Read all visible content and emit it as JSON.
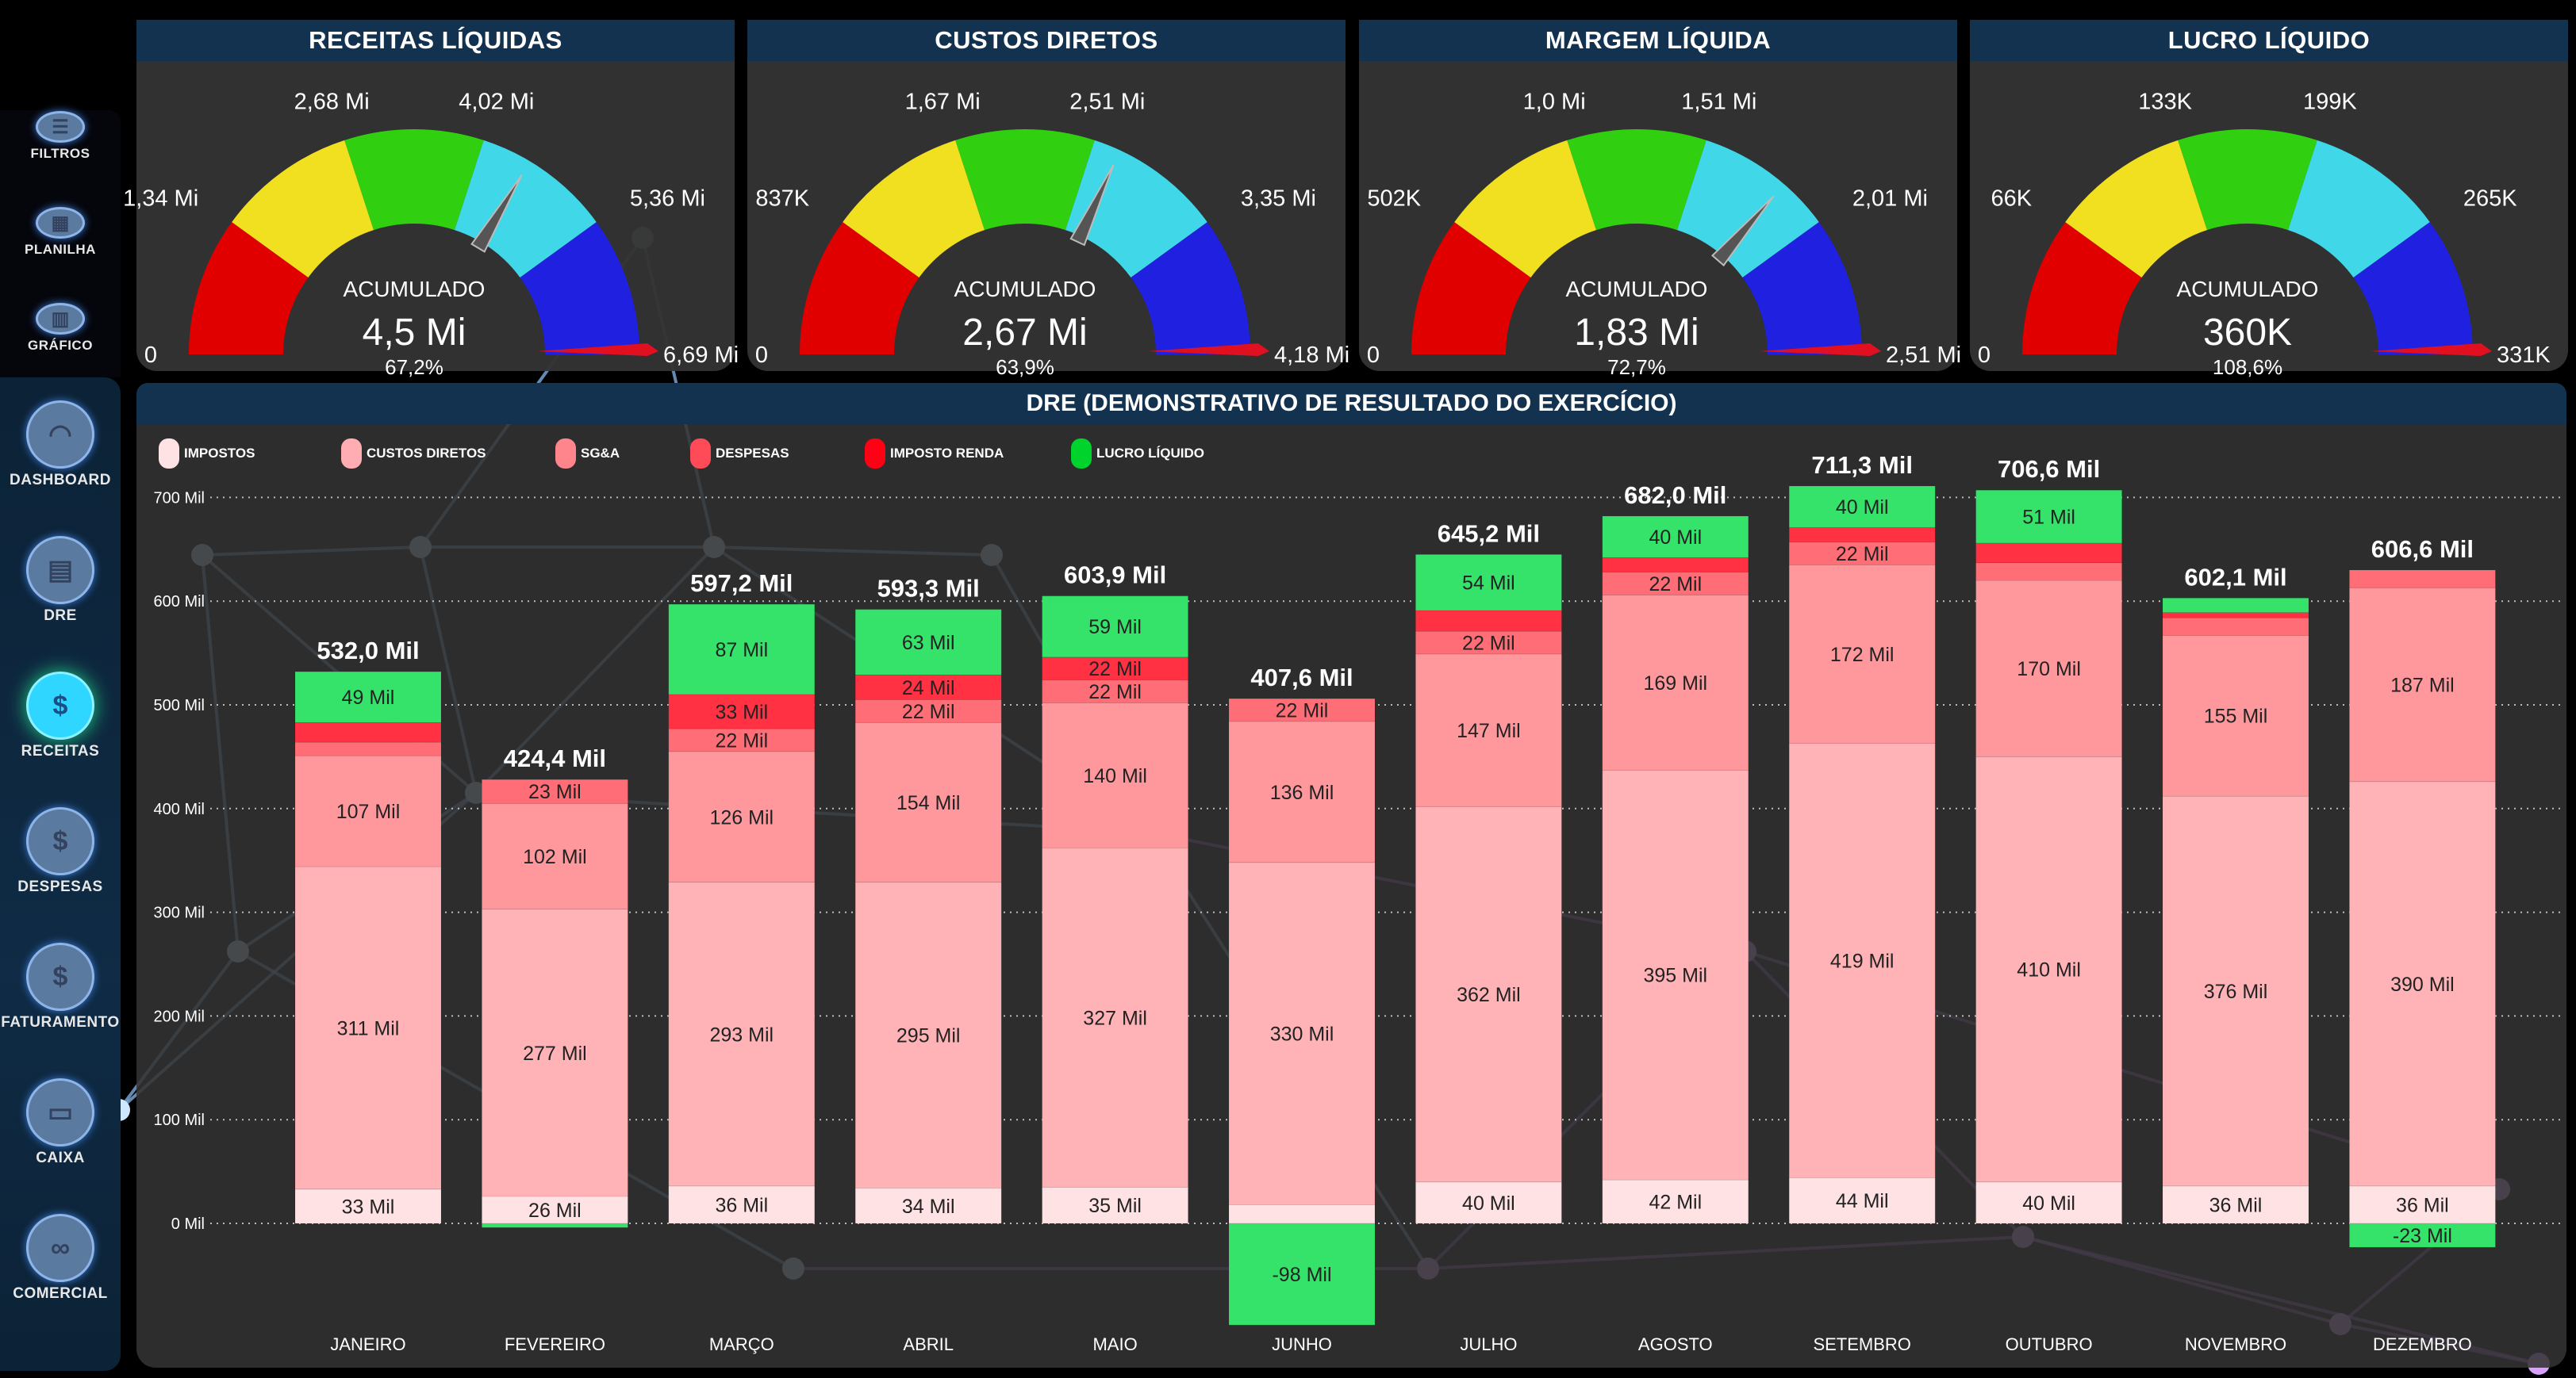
{
  "sidebar": {
    "top_items": [
      {
        "label": "FILTROS",
        "icon": "sliders-icon"
      },
      {
        "label": "PLANILHA",
        "icon": "table-icon"
      },
      {
        "label": "GRÁFICO",
        "icon": "presentation-chart-icon"
      }
    ],
    "nav_items": [
      {
        "label": "DASHBOARD",
        "icon": "speedometer-icon",
        "active": false
      },
      {
        "label": "DRE",
        "icon": "layout-table-icon",
        "active": false
      },
      {
        "label": "RECEITAS",
        "icon": "money-plant-icon",
        "active": true
      },
      {
        "label": "DESPESAS",
        "icon": "dollar-tag-icon",
        "active": false
      },
      {
        "label": "FATURAMENTO",
        "icon": "hand-dollar-icon",
        "active": false
      },
      {
        "label": "CAIXA",
        "icon": "wallet-icon",
        "active": false
      },
      {
        "label": "COMERCIAL",
        "icon": "handshake-icon",
        "active": false
      }
    ]
  },
  "gauges": [
    {
      "title": "RECEITAS LÍQUIDAS",
      "ticks": [
        "0",
        "1,34 Mi",
        "2,68 Mi",
        "4,02 Mi",
        "5,36 Mi",
        "6,69 Mi"
      ],
      "center_label": "ACUMULADO",
      "value": "4,5 Mi",
      "percent": "67,2%",
      "fraction": 0.672
    },
    {
      "title": "CUSTOS DIRETOS",
      "ticks": [
        "0",
        "837K",
        "1,67 Mi",
        "2,51 Mi",
        "3,35 Mi",
        "4,18 Mi"
      ],
      "center_label": "ACUMULADO",
      "value": "2,67 Mi",
      "percent": "63,9%",
      "fraction": 0.639
    },
    {
      "title": "MARGEM LÍQUIDA",
      "ticks": [
        "0",
        "502K",
        "1,0 Mi",
        "1,51 Mi",
        "2,01 Mi",
        "2,51 Mi"
      ],
      "center_label": "ACUMULADO",
      "value": "1,83 Mi",
      "percent": "72,7%",
      "fraction": 0.727
    },
    {
      "title": "LUCRO LÍQUIDO",
      "ticks": [
        "0",
        "66K",
        "133K",
        "199K",
        "265K",
        "331K"
      ],
      "center_label": "ACUMULADO",
      "value": "360K",
      "percent": "108,6%",
      "fraction": 1.086
    }
  ],
  "gauge_colors": [
    "#e00000",
    "#f0e020",
    "#30d010",
    "#40d8e8",
    "#2020e0"
  ],
  "dre": {
    "title": "DRE (DEMONSTRATIVO DE RESULTADO DO EXERCÍCIO)"
  },
  "chart_data": {
    "type": "bar",
    "stacked": true,
    "categories": [
      "JANEIRO",
      "FEVEREIRO",
      "MARÇO",
      "ABRIL",
      "MAIO",
      "JUNHO",
      "JULHO",
      "AGOSTO",
      "SETEMBRO",
      "OUTUBRO",
      "NOVEMBRO",
      "DEZEMBRO"
    ],
    "unit": "Mil",
    "ylim": [
      -110,
      720
    ],
    "yticks": [
      "0 Mil",
      "100 Mil",
      "200 Mil",
      "300 Mil",
      "400 Mil",
      "500 Mil",
      "600 Mil",
      "700 Mil"
    ],
    "grid": true,
    "legend_position": "top-left",
    "series": [
      {
        "name": "IMPOSTOS",
        "color": "#ffe2e4",
        "values": [
          33,
          26,
          36,
          34,
          35,
          18,
          40,
          42,
          44,
          40,
          36,
          36
        ]
      },
      {
        "name": "CUSTOS DIRETOS",
        "color": "#ffb3b7",
        "values": [
          311,
          277,
          293,
          295,
          327,
          330,
          362,
          395,
          419,
          410,
          376,
          390
        ]
      },
      {
        "name": "SG&A",
        "color": "#ff989d",
        "values": [
          107,
          102,
          126,
          154,
          140,
          136,
          147,
          169,
          172,
          170,
          155,
          187
        ]
      },
      {
        "name": "DESPESAS",
        "color": "#ff6e76",
        "values": [
          13,
          23,
          22,
          22,
          22,
          22,
          22,
          22,
          22,
          17,
          17,
          17
        ]
      },
      {
        "name": "IMPOSTO RENDA",
        "color": "#ff3142",
        "values": [
          19,
          0,
          33,
          24,
          22,
          0,
          20,
          14,
          14,
          19,
          5,
          0
        ]
      },
      {
        "name": "LUCRO LÍQUIDO",
        "color": "#35e36b",
        "values": [
          49,
          -4,
          87,
          63,
          59,
          -98,
          54,
          40,
          40,
          51,
          14,
          -23
        ]
      }
    ],
    "legend_colors": [
      "#ffe2e4",
      "#ffadb2",
      "#ff858c",
      "#ff4b57",
      "#ff0014",
      "#00d42c"
    ],
    "totals": [
      "532,0 Mil",
      "424,4 Mil",
      "597,2 Mil",
      "593,3 Mil",
      "603,9 Mil",
      "407,6 Mil",
      "645,2 Mil",
      "682,0 Mil",
      "711,3 Mil",
      "706,6 Mil",
      "602,1 Mil",
      "606,6 Mil"
    ]
  }
}
